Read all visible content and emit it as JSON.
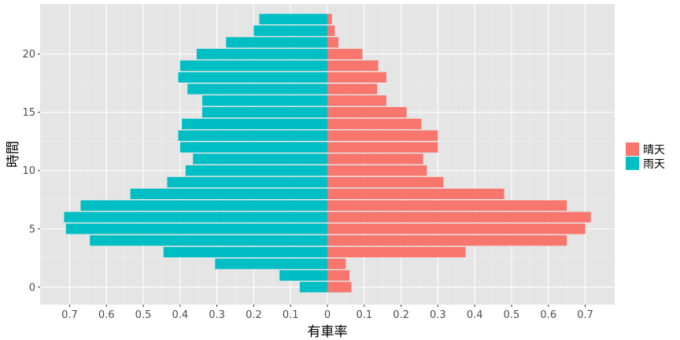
{
  "chart_data": {
    "type": "bar",
    "orientation": "horizontal-diverging",
    "xlabel": "有車率",
    "ylabel": "時間",
    "xlim": [
      -0.78,
      0.78
    ],
    "ylim": [
      -1.5,
      24.3
    ],
    "x_ticks": [
      -0.7,
      -0.6,
      -0.5,
      -0.4,
      -0.3,
      -0.2,
      -0.1,
      0,
      0.1,
      0.2,
      0.3,
      0.4,
      0.5,
      0.6,
      0.7
    ],
    "x_tick_labels": [
      "0.7",
      "0.6",
      "0.5",
      "0.4",
      "0.3",
      "0.2",
      "0.1",
      "0",
      "0.1",
      "0.2",
      "0.3",
      "0.4",
      "0.5",
      "0.6",
      "0.7"
    ],
    "y_ticks": [
      0,
      5,
      10,
      15,
      20
    ],
    "y_tick_labels": [
      "0",
      "5",
      "10",
      "15",
      "20"
    ],
    "grid": true,
    "legend_position": "right",
    "hours": [
      0,
      1,
      2,
      3,
      4,
      5,
      6,
      7,
      8,
      9,
      10,
      11,
      12,
      13,
      14,
      15,
      16,
      17,
      18,
      19,
      20,
      21,
      22,
      23
    ],
    "series": [
      {
        "name": "晴天",
        "color": "#F8766D",
        "direction": "right",
        "values": [
          0.065,
          0.06,
          0.05,
          0.375,
          0.65,
          0.7,
          0.715,
          0.65,
          0.48,
          0.315,
          0.27,
          0.26,
          0.3,
          0.3,
          0.255,
          0.215,
          0.16,
          0.135,
          0.16,
          0.138,
          0.095,
          0.03,
          0.02,
          0.012
        ]
      },
      {
        "name": "雨天",
        "color": "#00BFC4",
        "direction": "left",
        "values": [
          0.075,
          0.13,
          0.305,
          0.445,
          0.645,
          0.71,
          0.715,
          0.67,
          0.535,
          0.435,
          0.385,
          0.365,
          0.4,
          0.405,
          0.395,
          0.34,
          0.34,
          0.38,
          0.405,
          0.4,
          0.355,
          0.275,
          0.2,
          0.185
        ]
      }
    ]
  }
}
